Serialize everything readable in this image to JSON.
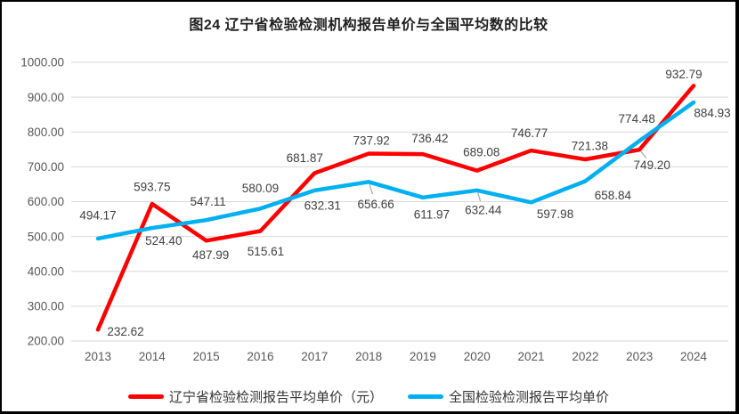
{
  "title": "图24 辽宁省检验检测机构报告单价与全国平均数的比较",
  "chart_data": {
    "type": "line",
    "categories": [
      "2013",
      "2014",
      "2015",
      "2016",
      "2017",
      "2018",
      "2019",
      "2020",
      "2021",
      "2022",
      "2023",
      "2024"
    ],
    "series": [
      {
        "name": "辽宁省检验检测报告平均单价（元）",
        "color": "#FF0000",
        "values": [
          232.62,
          593.75,
          487.99,
          515.61,
          681.87,
          737.92,
          736.42,
          689.08,
          746.77,
          721.38,
          749.2,
          932.79
        ],
        "label_offsets": [
          [
            31,
            2
          ],
          [
            0,
            -19
          ],
          [
            5,
            16
          ],
          [
            6,
            23
          ],
          [
            -11,
            -17
          ],
          [
            3,
            -15
          ],
          [
            8,
            -18
          ],
          [
            5,
            -21
          ],
          [
            -2,
            -20
          ],
          [
            5,
            -15
          ],
          [
            14,
            17
          ],
          [
            -11,
            -13
          ]
        ],
        "leaders": [
          10
        ]
      },
      {
        "name": "全国检验检测报告平均单价",
        "color": "#00B0F0",
        "values": [
          494.17,
          524.4,
          547.11,
          580.09,
          632.31,
          656.66,
          611.97,
          632.44,
          597.98,
          658.84,
          774.48,
          884.93
        ],
        "label_offsets": [
          [
            0,
            -26
          ],
          [
            13,
            14
          ],
          [
            2,
            -21
          ],
          [
            0,
            -23
          ],
          [
            9,
            17
          ],
          [
            8,
            25
          ],
          [
            10,
            19
          ],
          [
            7,
            22
          ],
          [
            27,
            13
          ],
          [
            31,
            16
          ],
          [
            -3,
            -25
          ],
          [
            21,
            12
          ]
        ],
        "leaders": [
          5,
          7
        ]
      }
    ],
    "ylim": [
      200,
      1000
    ],
    "ytick_step": 100,
    "yticks": [
      "1000.00",
      "900.00",
      "800.00",
      "700.00",
      "600.00",
      "500.00",
      "400.00",
      "300.00",
      "200.00"
    ],
    "grid": true,
    "gridline_color": "#D9D9D9",
    "axis_text_color": "#595959",
    "data_label_color": "#404040",
    "leader_color": "#A6A6A6",
    "legend_position": "bottom"
  }
}
